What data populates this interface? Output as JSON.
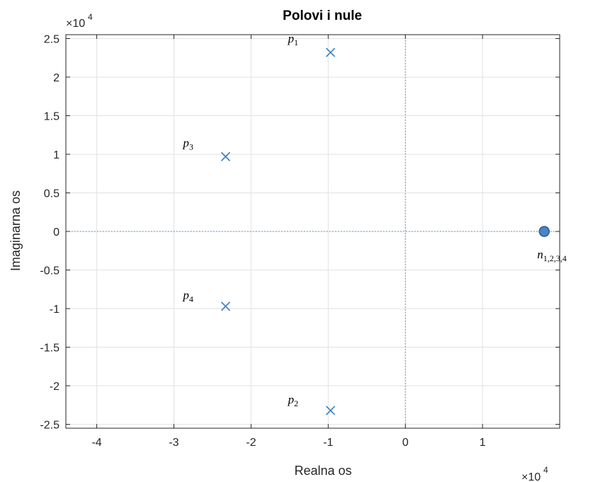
{
  "chart_data": {
    "type": "scatter",
    "title": "Polovi i nule",
    "xlabel": "Realna os",
    "ylabel": "Imaginarna os",
    "x_exponent_label": "×10",
    "x_exponent_power": "4",
    "y_exponent_label": "×10",
    "y_exponent_power": "4",
    "xlim": [
      -4.4,
      2.0
    ],
    "ylim": [
      -2.55,
      2.55
    ],
    "xticks": [
      -4,
      -3,
      -2,
      -1,
      0,
      1
    ],
    "xtick_labels": [
      "-4",
      "-3",
      "-2",
      "-1",
      "0",
      "1"
    ],
    "yticks": [
      2.5,
      2,
      1.5,
      1,
      0.5,
      0,
      -0.5,
      -1,
      -1.5,
      -2,
      -2.5
    ],
    "ytick_labels": [
      "2.5",
      "2",
      "1.5",
      "1",
      "0.5",
      "0",
      "-0.5",
      "-1",
      "-1.5",
      "-2",
      "-2.5"
    ],
    "grid": true,
    "colors": {
      "marker": "#3d7fc0",
      "zero_fill": "#4a83c6",
      "zero_edge": "#2a5c94",
      "grid": "#e2e2e2",
      "axes_box": "#262626",
      "dotted_axes": "#3d7fc0"
    },
    "poles": [
      {
        "name": "p",
        "sub": "1",
        "x": -0.97,
        "y": 2.32
      },
      {
        "name": "p",
        "sub": "2",
        "x": -0.97,
        "y": -2.32
      },
      {
        "name": "p",
        "sub": "3",
        "x": -2.33,
        "y": 0.97
      },
      {
        "name": "p",
        "sub": "4",
        "x": -2.33,
        "y": -0.97
      }
    ],
    "zeros": [
      {
        "name": "n",
        "sub": "1,2,3,4",
        "x": 1.8,
        "y": 0
      }
    ]
  }
}
